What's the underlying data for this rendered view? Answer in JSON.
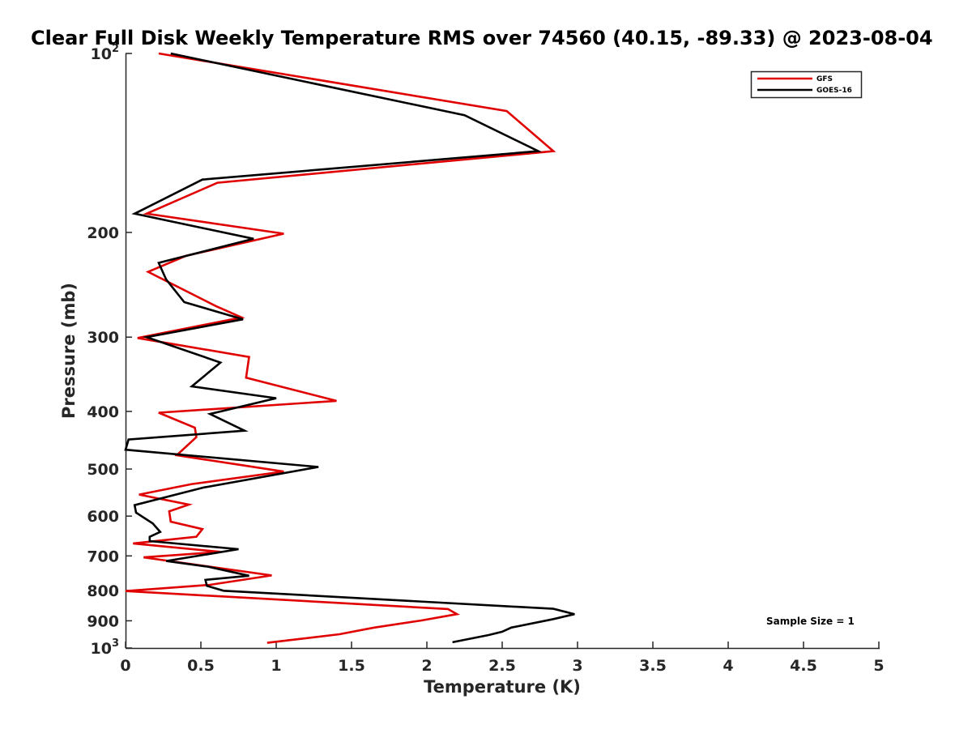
{
  "chart_data": {
    "type": "line",
    "title": "Clear Full Disk Weekly Temperature RMS over 74560 (40.15, -89.33) @ 2023-08-04",
    "xlabel": "Temperature (K)",
    "ylabel": "Pressure (mb)",
    "xlim": [
      0,
      5
    ],
    "ylim": [
      100,
      1000
    ],
    "yscale": "log",
    "y_reversed": true,
    "xticks": [
      0,
      0.5,
      1,
      1.5,
      2,
      2.5,
      3,
      3.5,
      4,
      4.5,
      5
    ],
    "xtick_labels": [
      "0",
      "0.5",
      "1",
      "1.5",
      "2",
      "2.5",
      "3",
      "3.5",
      "4",
      "4.5",
      "5"
    ],
    "yticks": [
      100,
      200,
      300,
      400,
      500,
      600,
      700,
      800,
      900,
      1000
    ],
    "ytick_labels": [
      {
        "base": "10",
        "exp": "2"
      },
      {
        "base": "200",
        "exp": ""
      },
      {
        "base": "300",
        "exp": ""
      },
      {
        "base": "400",
        "exp": ""
      },
      {
        "base": "500",
        "exp": ""
      },
      {
        "base": "600",
        "exp": ""
      },
      {
        "base": "700",
        "exp": ""
      },
      {
        "base": "800",
        "exp": ""
      },
      {
        "base": "900",
        "exp": ""
      },
      {
        "base": "10",
        "exp": "3"
      }
    ],
    "grid": false,
    "legend_position": "top-right",
    "annotation": "Sample Size = 1",
    "series": [
      {
        "name": "GFS",
        "color": "#e00000",
        "points": [
          [
            0.22,
            100
          ],
          [
            2.53,
            125
          ],
          [
            2.84,
            146
          ],
          [
            0.61,
            165
          ],
          [
            0.14,
            186
          ],
          [
            1.05,
            201
          ],
          [
            0.4,
            219
          ],
          [
            0.15,
            233
          ],
          [
            0.6,
            266
          ],
          [
            0.77,
            278
          ],
          [
            0.08,
            301
          ],
          [
            0.82,
            324
          ],
          [
            0.8,
            351
          ],
          [
            1.4,
            384
          ],
          [
            0.22,
            402
          ],
          [
            0.46,
            426
          ],
          [
            0.47,
            442
          ],
          [
            0.34,
            474
          ],
          [
            1.05,
            505
          ],
          [
            0.44,
            530
          ],
          [
            0.09,
            552
          ],
          [
            0.42,
            574
          ],
          [
            0.29,
            589
          ],
          [
            0.3,
            613
          ],
          [
            0.51,
            631
          ],
          [
            0.47,
            650
          ],
          [
            0.05,
            667
          ],
          [
            0.63,
            689
          ],
          [
            0.12,
            704
          ],
          [
            0.97,
            755
          ],
          [
            0.56,
            783
          ],
          [
            0.0,
            802
          ],
          [
            2.14,
            860
          ],
          [
            2.2,
            877
          ],
          [
            1.96,
            899
          ],
          [
            1.65,
            924
          ],
          [
            1.42,
            948
          ],
          [
            0.94,
            980
          ]
        ]
      },
      {
        "name": "GOES-16",
        "color": "#000000",
        "points": [
          [
            0.3,
            100
          ],
          [
            2.25,
            127
          ],
          [
            2.74,
            146
          ],
          [
            0.51,
            163
          ],
          [
            0.06,
            186
          ],
          [
            0.85,
            205
          ],
          [
            0.22,
            225
          ],
          [
            0.27,
            240
          ],
          [
            0.39,
            262
          ],
          [
            0.78,
            280
          ],
          [
            0.14,
            300
          ],
          [
            0.63,
            331
          ],
          [
            0.44,
            363
          ],
          [
            1.0,
            380
          ],
          [
            0.56,
            404
          ],
          [
            0.79,
            431
          ],
          [
            0.02,
            446
          ],
          [
            0.0,
            464
          ],
          [
            1.28,
            496
          ],
          [
            0.52,
            537
          ],
          [
            0.06,
            575
          ],
          [
            0.07,
            592
          ],
          [
            0.18,
            617
          ],
          [
            0.23,
            638
          ],
          [
            0.16,
            650
          ],
          [
            0.16,
            661
          ],
          [
            0.75,
            682
          ],
          [
            0.27,
            714
          ],
          [
            0.55,
            730
          ],
          [
            0.82,
            756
          ],
          [
            0.53,
            768
          ],
          [
            0.54,
            786
          ],
          [
            0.65,
            801
          ],
          [
            2.84,
            859
          ],
          [
            2.98,
            877
          ],
          [
            2.84,
            894
          ],
          [
            2.56,
            924
          ],
          [
            2.5,
            939
          ],
          [
            2.41,
            951
          ],
          [
            2.17,
            978
          ]
        ]
      }
    ]
  }
}
